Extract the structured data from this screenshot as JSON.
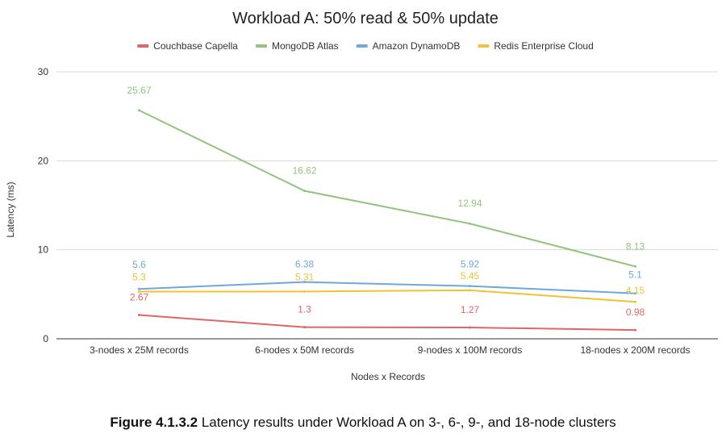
{
  "chart_data": {
    "type": "line",
    "title": "Workload A: 50% read & 50% update",
    "xlabel": "Nodes x Records",
    "ylabel": "Latency (ms)",
    "ylim": [
      0,
      30
    ],
    "yticks": [
      0,
      10,
      20,
      30
    ],
    "grid": true,
    "legend_position": "top",
    "categories": [
      "3-nodes x 25M records",
      "6-nodes x 50M records",
      "9-nodes x 100M records",
      "18-nodes x 200M records"
    ],
    "series": [
      {
        "name": "Couchbase Capella",
        "color": "#e06666",
        "values": [
          2.67,
          1.3,
          1.27,
          0.98
        ]
      },
      {
        "name": "MongoDB Atlas",
        "color": "#93c47d",
        "values": [
          25.67,
          16.62,
          12.94,
          8.13
        ]
      },
      {
        "name": "Amazon DynamoDB",
        "color": "#6fa8dc",
        "values": [
          5.6,
          6.38,
          5.92,
          5.1
        ]
      },
      {
        "name": "Redis Enterprise Cloud",
        "color": "#f1c232",
        "values": [
          5.3,
          5.31,
          5.45,
          4.15
        ]
      }
    ]
  },
  "caption": {
    "label": "Figure 4.1.3.2",
    "text": " Latency results under Workload A on 3-, 6-, 9-, and 18-node clusters"
  }
}
